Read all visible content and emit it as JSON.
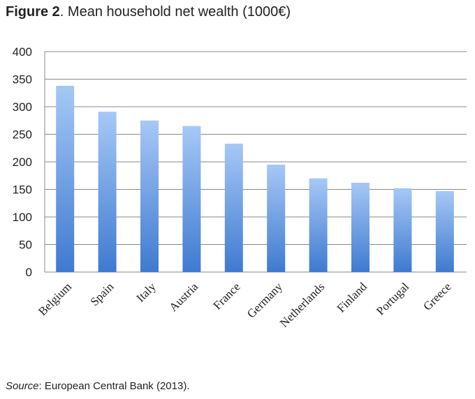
{
  "figure": {
    "label": "Figure 2",
    "caption": ". Mean household net wealth (1000€)"
  },
  "source": {
    "label": "Source",
    "text": ": European Central Bank (2013)."
  },
  "colors": {
    "bar_top": "#a6c8f6",
    "bar_bottom": "#3f7ad0",
    "grid": "#888888",
    "axis": "#888888"
  },
  "chart_data": {
    "type": "bar",
    "categories": [
      "Belgium",
      "Spain",
      "Italy",
      "Austria",
      "France",
      "Germany",
      "Netherlands",
      "Finland",
      "Portugal",
      "Greece"
    ],
    "values": [
      338,
      291,
      275,
      265,
      233,
      195,
      170,
      162,
      152,
      147
    ],
    "ylim": [
      0,
      400
    ],
    "yticks": [
      0,
      50,
      100,
      150,
      200,
      250,
      300,
      350,
      400
    ],
    "grid": true,
    "legend": "none"
  }
}
